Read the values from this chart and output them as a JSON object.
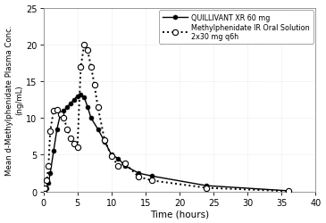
{
  "quillivant_x": [
    0,
    0.25,
    0.5,
    0.75,
    1.0,
    1.5,
    2.0,
    2.5,
    3.0,
    3.5,
    4.0,
    4.5,
    5.0,
    5.5,
    6.0,
    6.5,
    7.0,
    8.0,
    9.0,
    10.0,
    11.0,
    12.0,
    14.0,
    16.0,
    24.0,
    36.0
  ],
  "quillivant_y": [
    0,
    0.2,
    0.5,
    1.2,
    2.5,
    5.5,
    8.5,
    10.5,
    11.0,
    11.5,
    12.0,
    12.5,
    13.0,
    13.2,
    12.8,
    11.5,
    10.0,
    8.5,
    6.8,
    5.0,
    4.5,
    3.5,
    2.5,
    2.1,
    0.8,
    0.1
  ],
  "ir_x": [
    0,
    0.25,
    0.5,
    0.75,
    1.0,
    1.5,
    2.0,
    2.5,
    3.0,
    3.5,
    4.0,
    4.5,
    5.0,
    5.5,
    6.0,
    6.5,
    7.0,
    7.5,
    8.0,
    9.0,
    10.0,
    11.0,
    12.0,
    14.0,
    16.0,
    24.0,
    36.0
  ],
  "ir_y": [
    0,
    0.4,
    1.5,
    3.5,
    8.2,
    11.0,
    11.1,
    10.5,
    10.0,
    8.5,
    7.2,
    6.5,
    6.0,
    17.0,
    20.0,
    19.2,
    17.0,
    14.5,
    11.5,
    7.0,
    4.8,
    3.5,
    3.8,
    2.0,
    1.5,
    0.5,
    0.05
  ],
  "xlabel": "Time (hours)",
  "ylabel_line1": "Mean d-Methylphenidate Plasma Conc.",
  "ylabel_line2": "(ng/mL)",
  "xlim": [
    0,
    40
  ],
  "ylim": [
    0,
    25
  ],
  "xticks": [
    0,
    5,
    10,
    15,
    20,
    25,
    30,
    35,
    40
  ],
  "yticks": [
    0,
    5,
    10,
    15,
    20,
    25
  ],
  "legend_quillivant": "QUILLIVANT XR 60 mg",
  "legend_ir_line1": "Methylphenidate IR Oral Solution",
  "legend_ir_line2": "2x30 mg q6h",
  "bg_color": "#ffffff",
  "grid_color": "#d0d0d0",
  "line_color": "#000000"
}
